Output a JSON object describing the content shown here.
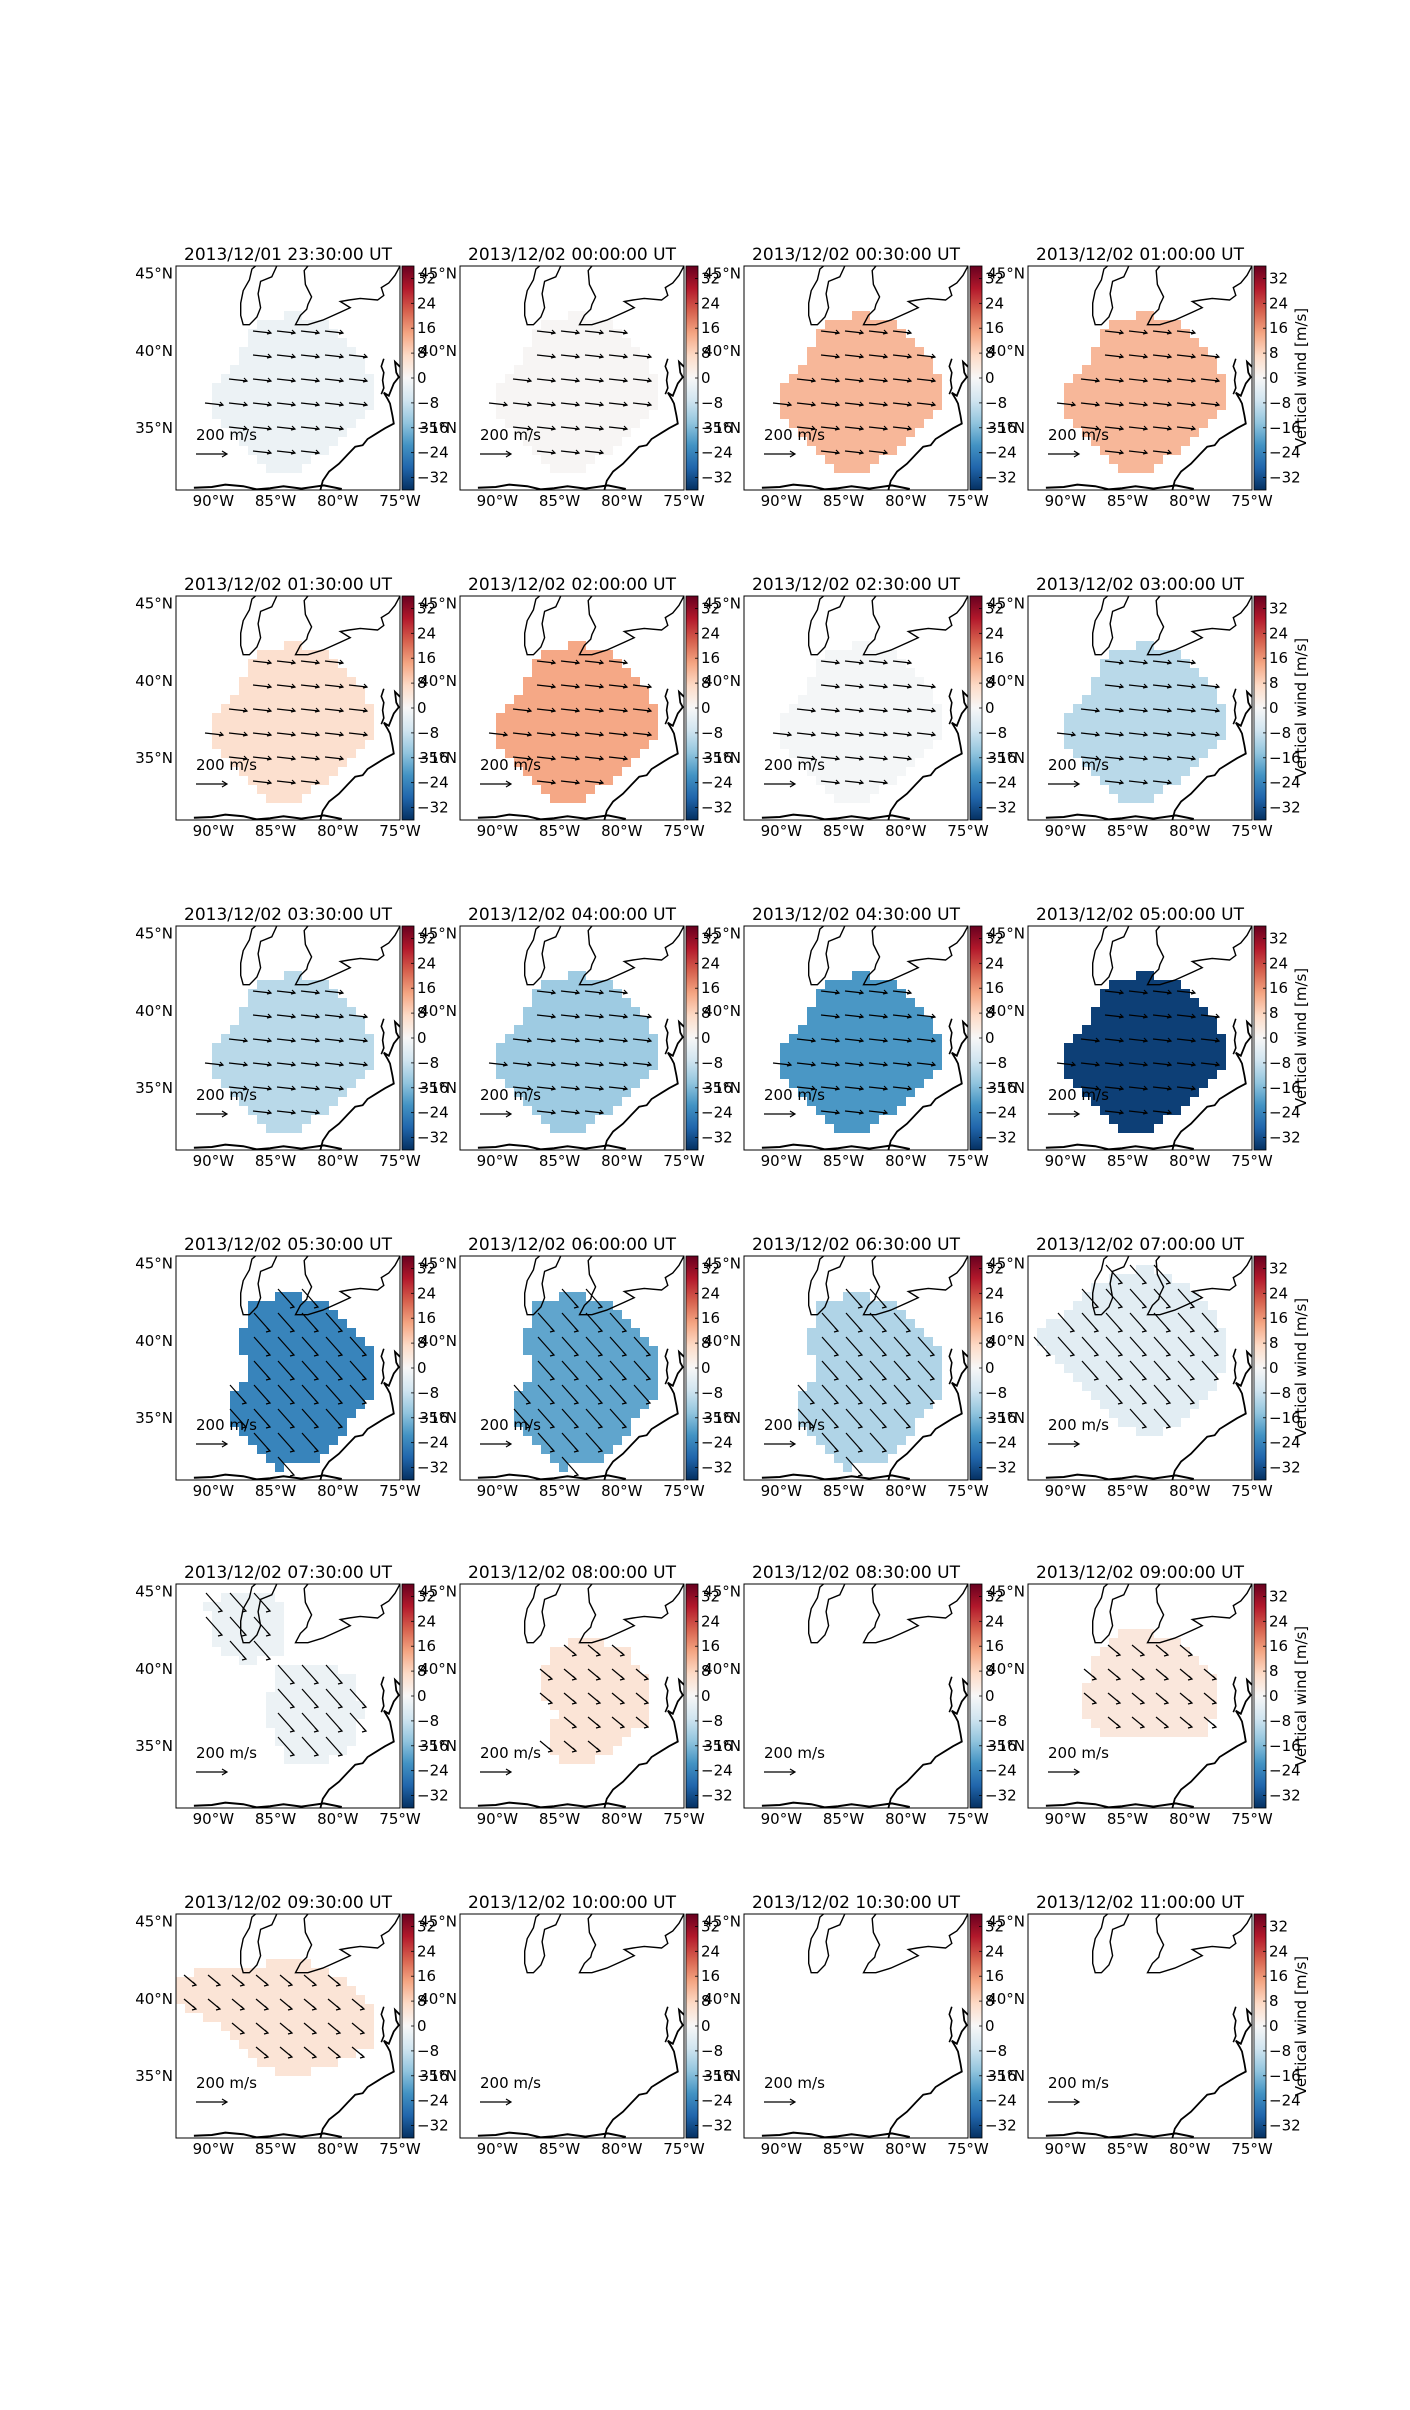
{
  "chart_data": {
    "type": "heatmap",
    "description_free": true,
    "grid": {
      "rows": 6,
      "cols": 4
    },
    "map": {
      "lon_ticks": [
        "90°W",
        "85°W",
        "80°W",
        "75°W"
      ],
      "lat_ticks": [
        "45°N",
        "40°N",
        "35°N"
      ],
      "lon_range": [
        -93,
        -75
      ],
      "lat_range": [
        31,
        45.5
      ]
    },
    "colorbar": {
      "ticks": [
        "32",
        "24",
        "16",
        "8",
        "0",
        "−8",
        "−16",
        "−24",
        "−32"
      ],
      "label": "Vertical wind [m/s]",
      "vmin": -36,
      "vmax": 36,
      "colors": [
        "#053061",
        "#2166ac",
        "#4393c3",
        "#92c5de",
        "#d1e5f0",
        "#f7f7f7",
        "#fddbc7",
        "#f4a582",
        "#d6604d",
        "#b2182b",
        "#67001f"
      ]
    },
    "reference_arrow_label": "200 m/s",
    "panels": [
      {
        "title": "2013/12/01 23:30:00 UT",
        "value": -2,
        "shape": "A",
        "arrows": true
      },
      {
        "title": "2013/12/02 00:00:00 UT",
        "value": 0.5,
        "shape": "A",
        "arrows": true
      },
      {
        "title": "2013/12/02 00:30:00 UT",
        "value": 12,
        "shape": "A",
        "arrows": true
      },
      {
        "title": "2013/12/02 01:00:00 UT",
        "value": 12,
        "shape": "A",
        "arrows": true
      },
      {
        "title": "2013/12/02 01:30:00 UT",
        "value": 6,
        "shape": "A",
        "arrows": true
      },
      {
        "title": "2013/12/02 02:00:00 UT",
        "value": 14,
        "shape": "A",
        "arrows": true
      },
      {
        "title": "2013/12/02 02:30:00 UT",
        "value": -0.5,
        "shape": "A",
        "arrows": true
      },
      {
        "title": "2013/12/02 03:00:00 UT",
        "value": -10,
        "shape": "A",
        "arrows": true
      },
      {
        "title": "2013/12/02 03:30:00 UT",
        "value": -10,
        "shape": "A",
        "arrows": true
      },
      {
        "title": "2013/12/02 04:00:00 UT",
        "value": -13,
        "shape": "A",
        "arrows": true
      },
      {
        "title": "2013/12/02 04:30:00 UT",
        "value": -21,
        "shape": "A",
        "arrows": true
      },
      {
        "title": "2013/12/02 05:00:00 UT",
        "value": -34,
        "shape": "A",
        "arrows": true
      },
      {
        "title": "2013/12/02 05:30:00 UT",
        "value": -24,
        "shape": "B",
        "arrows": true
      },
      {
        "title": "2013/12/02 06:00:00 UT",
        "value": -19,
        "shape": "B",
        "arrows": true
      },
      {
        "title": "2013/12/02 06:30:00 UT",
        "value": -11,
        "shape": "B",
        "arrows": true
      },
      {
        "title": "2013/12/02 07:00:00 UT",
        "value": -4,
        "shape": "C",
        "arrows": true
      },
      {
        "title": "2013/12/02 07:30:00 UT",
        "value": -2,
        "shape": "D",
        "arrows": true
      },
      {
        "title": "2013/12/02 08:00:00 UT",
        "value": 5,
        "shape": "E",
        "arrows": true
      },
      {
        "title": "2013/12/02 08:30:00 UT",
        "value": null,
        "shape": "none",
        "arrows": false
      },
      {
        "title": "2013/12/02 09:00:00 UT",
        "value": 4,
        "shape": "F",
        "arrows": true
      },
      {
        "title": "2013/12/02 09:30:00 UT",
        "value": 5,
        "shape": "G",
        "arrows": true
      },
      {
        "title": "2013/12/02 10:00:00 UT",
        "value": null,
        "shape": "none",
        "arrows": false
      },
      {
        "title": "2013/12/02 10:30:00 UT",
        "value": null,
        "shape": "none",
        "arrows": false
      },
      {
        "title": "2013/12/02 11:00:00 UT",
        "value": null,
        "shape": "none",
        "arrows": false
      }
    ]
  }
}
